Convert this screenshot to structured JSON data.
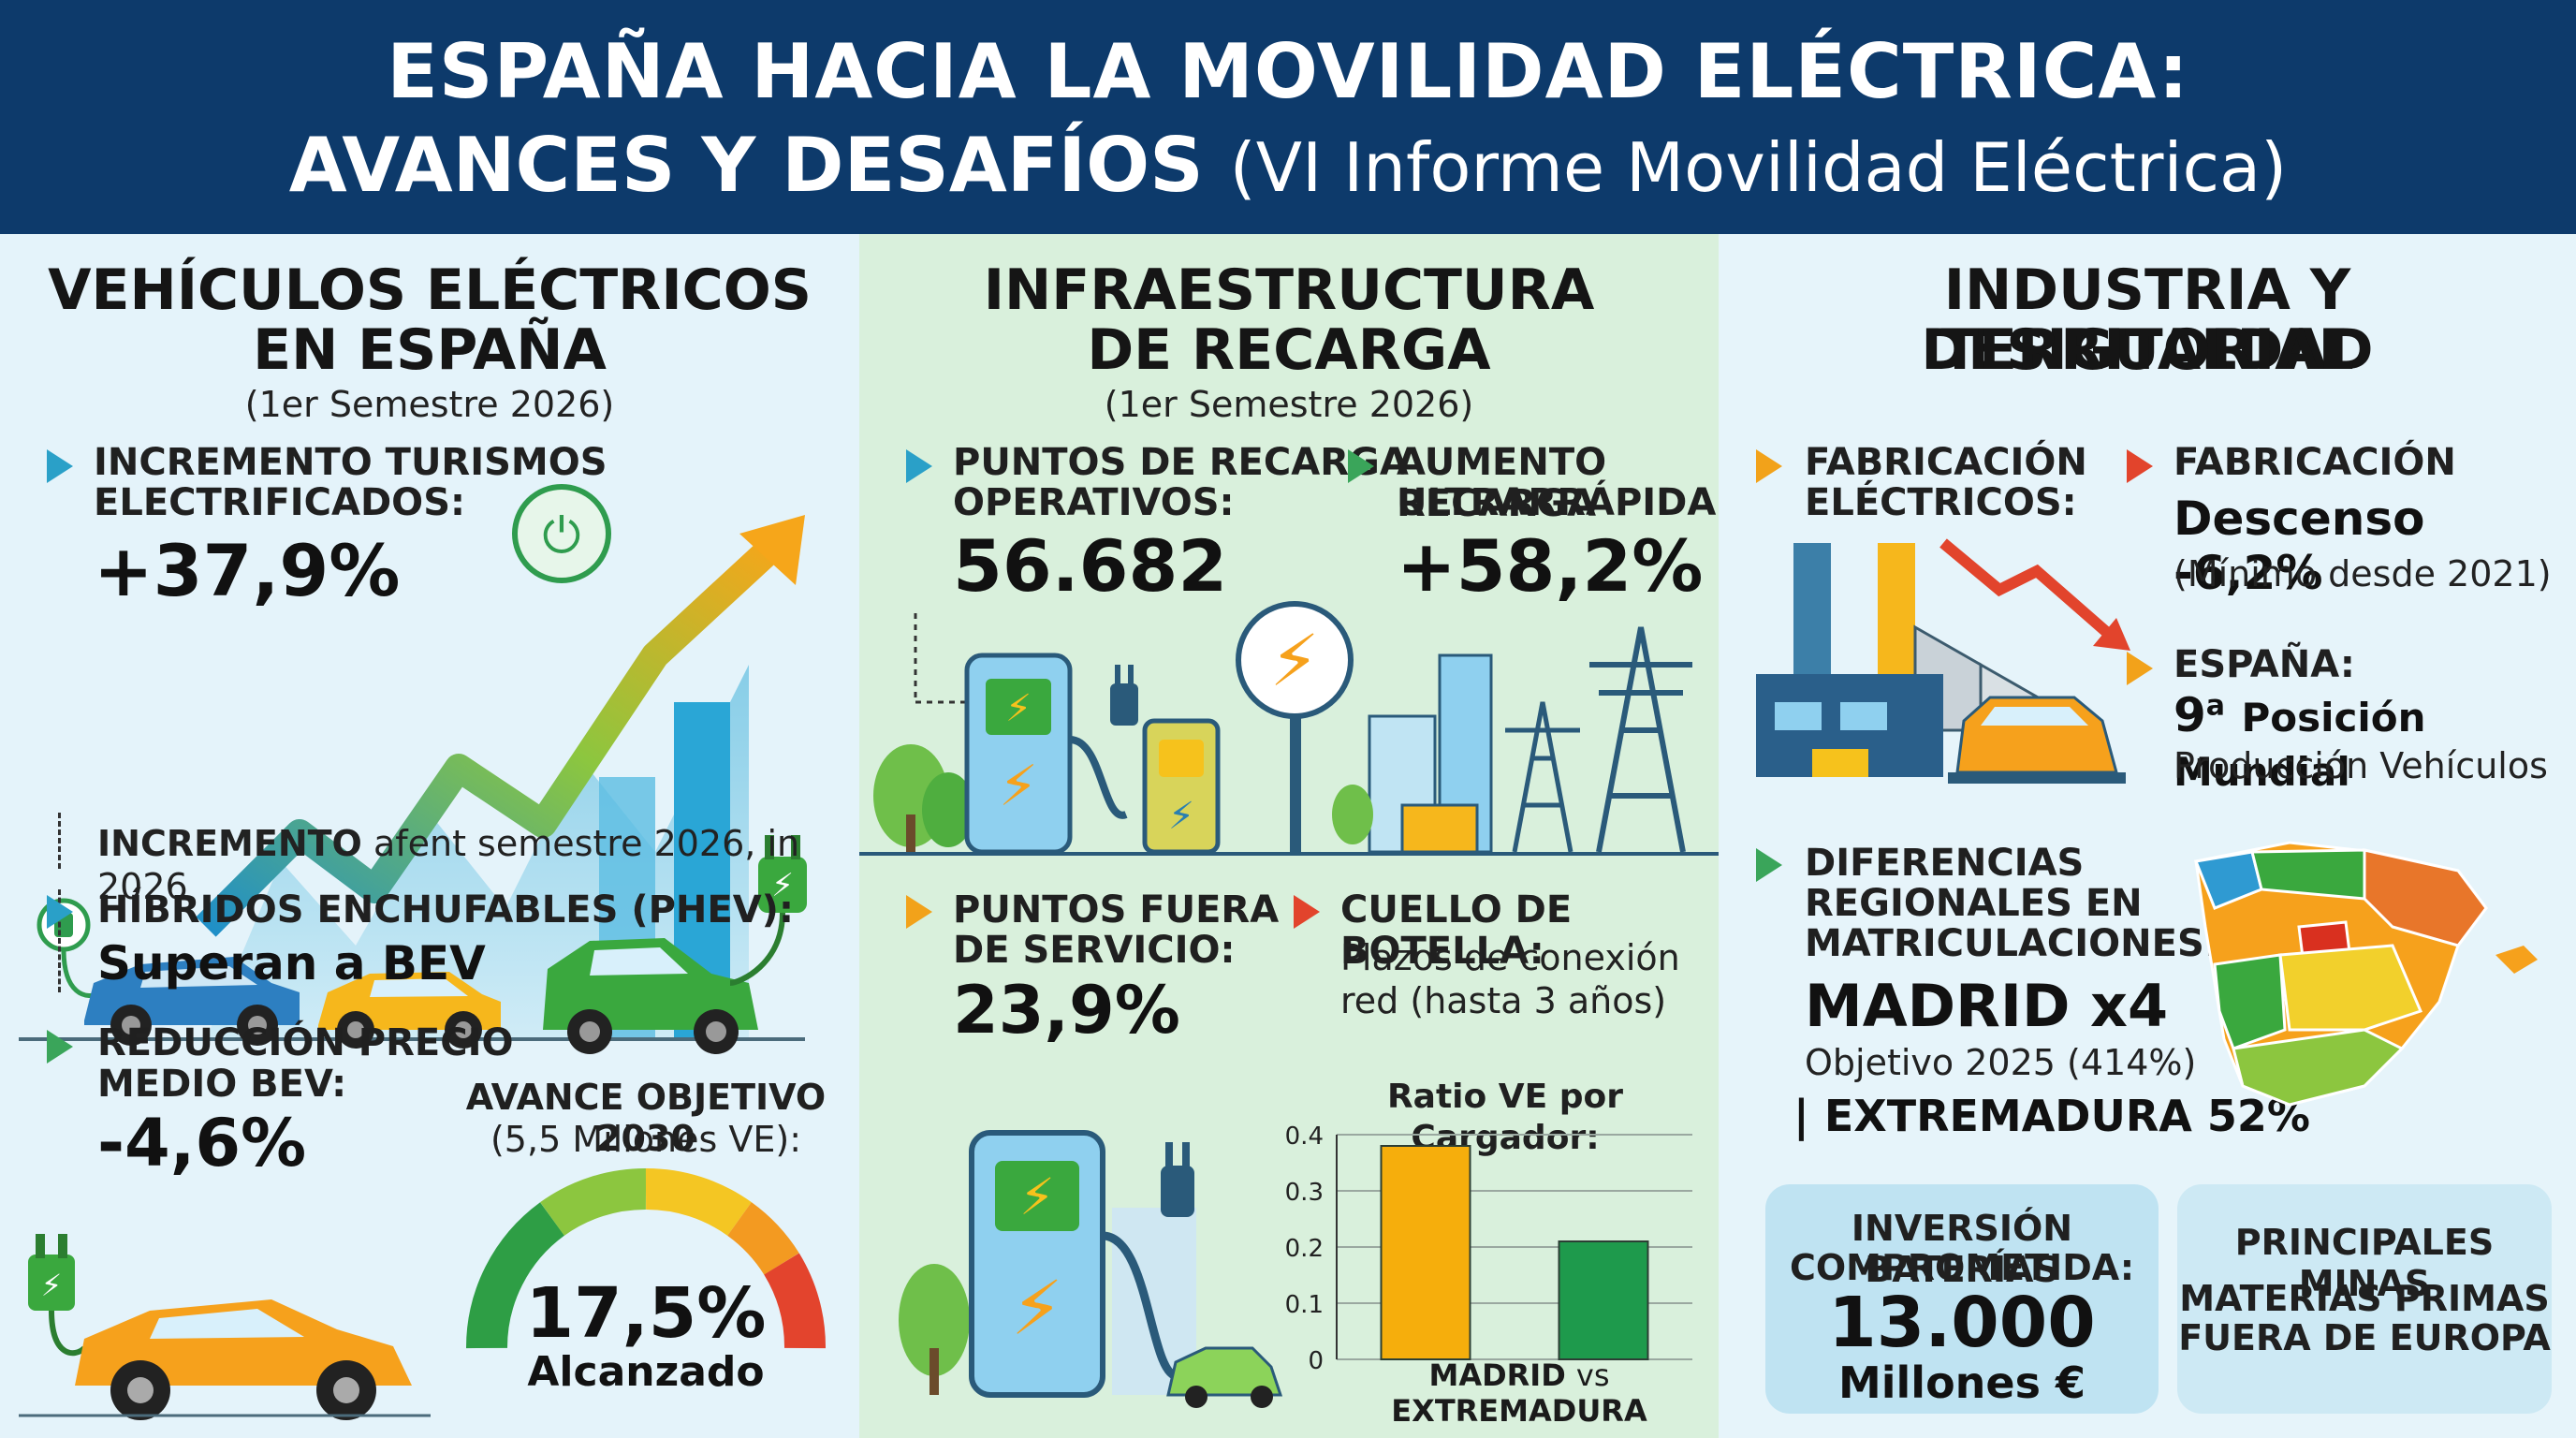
{
  "header": {
    "line1": "ESPAÑA HACIA LA MOVILIDAD ELÉCTRICA:",
    "line2": "AVANCES Y DESAFÍOS",
    "line2_sub": "(VI Informe Movilidad Eléctrica)"
  },
  "col1": {
    "title1": "VEHÍCULOS ELÉCTRICOS",
    "title2": "EN ESPAÑA",
    "subtitle": "(1er Semestre 2026)",
    "turismos_label1": "INCREMENTO TURISMOS",
    "turismos_label2": "ELECTRIFICADOS:",
    "turismos_value": "+37,9%",
    "note_bold": "INCREMENTO",
    "note_rest": "afent semestre 2026, in 2026",
    "phev_label": "HÍBRIDOS ENCHUFABLES (PHEV):",
    "phev_value": "Superan a BEV",
    "precio_label1": "REDUCCIÓN PRECIO",
    "precio_label2": "MEDIO BEV:",
    "precio_value": "-4,6%",
    "objetivo_label1": "AVANCE OBJETIVO 2030",
    "objetivo_label2": "(5,5 Millones VE):",
    "gauge_value": "17,5%",
    "gauge_caption": "Alcanzado",
    "gauge_progress": 0.175
  },
  "col2": {
    "title1": "INFRAESTRUCTURA",
    "title2": "DE RECARGA",
    "subtitle": "(1er Semestre 2026)",
    "puntos_label1": "PUNTOS DE RECARGA",
    "puntos_label2": "OPERATIVOS:",
    "puntos_value": "56.682",
    "ultra_label1": "AUMENTO RECARGA",
    "ultra_label2": "ULTRARRÁPIDA:",
    "ultra_value": "+58,2%",
    "fuera_label1": "PUNTOS FUERA",
    "fuera_label2": "DE SERVICIO:",
    "fuera_value": "23,9%",
    "cuello_label": "CUELLO DE BOTELLA:",
    "cuello_text1": "Plazos de conexión",
    "cuello_text2": "red (hasta 3 años)"
  },
  "chart_data": {
    "type": "bar",
    "title": "Ratio VE por Cargador:",
    "categories": [
      "MADRID",
      "EXTREMADURA"
    ],
    "xlabel_joiner": "vs",
    "values": [
      0.38,
      0.21
    ],
    "colors": [
      "#f6ae0c",
      "#1e9a4c"
    ],
    "ylim": [
      0,
      0.4
    ],
    "yticks": [
      "0",
      "0.1",
      "0.2",
      "0.3",
      "0.4"
    ],
    "grid": true
  },
  "col3": {
    "title1": "INDUSTRIA Y DESIGUALDAD",
    "title2": "TERRITORIAL",
    "fab_label1": "FABRICACIÓN",
    "fab_label2": "ELÉCTRICOS:",
    "fab2_label": "FABRICACIÓN",
    "fab2_value": "Descenso -6,2%",
    "fab2_note": "(Mínimo desde 2021)",
    "espana_label": "ESPAÑA:",
    "espana_value_num": "9",
    "espana_value_sup": "a",
    "espana_value_rest": "Posición Mundial",
    "espana_note": "Producción Vehículos",
    "dif_label1": "DIFERENCIAS",
    "dif_label2": "REGIONALES EN",
    "dif_label3": "MATRICULACIONES:",
    "dif_value": "MADRID x4",
    "dif_note": "Objetivo 2025 (414%)",
    "dif_extra": "| EXTREMADURA 52%",
    "inversion_label1": "INVERSIÓN BATERÍAS",
    "inversion_label2": "COMPROMETIDA:",
    "inversion_value": "13.000",
    "inversion_unit": "Millones €",
    "minas_label1": "PRINCIPALES MINAS",
    "minas_label2": "MATERIAS PRIMAS",
    "minas_label3": "FUERA DE EUROPA"
  },
  "colors": {
    "header": "#0d3a6b",
    "accent_blue": "#2aa0c8",
    "accent_green": "#3aa55a",
    "accent_orange": "#f2a21a",
    "accent_red": "#e2442c"
  }
}
